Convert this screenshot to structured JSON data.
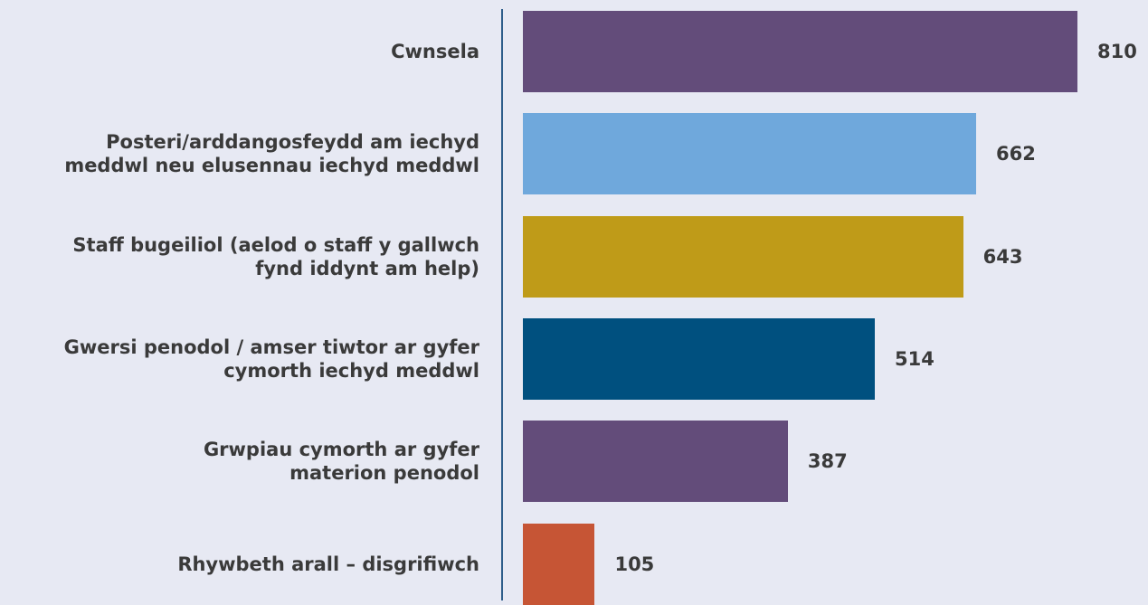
{
  "chart_data": {
    "type": "barh",
    "categories": [
      "Cwnsela",
      "Posteri/arddangosfeydd am iechyd\nmeddwl neu elusennau iechyd meddwl",
      "Staff bugeiliol (aelod o staff y gallwch\nfynd iddynt am help)",
      "Gwersi penodol / amser tiwtor ar gyfer\ncymorth iechyd meddwl",
      "Grwpiau cymorth ar gyfer\nmaterion penodol",
      "Rhywbeth arall – disgrifiwch"
    ],
    "values": [
      810,
      662,
      643,
      514,
      387,
      105
    ],
    "colors": [
      "#634c7a",
      "#6fa8dc",
      "#bf9b18",
      "#00507f",
      "#634c7a",
      "#c65535"
    ]
  }
}
